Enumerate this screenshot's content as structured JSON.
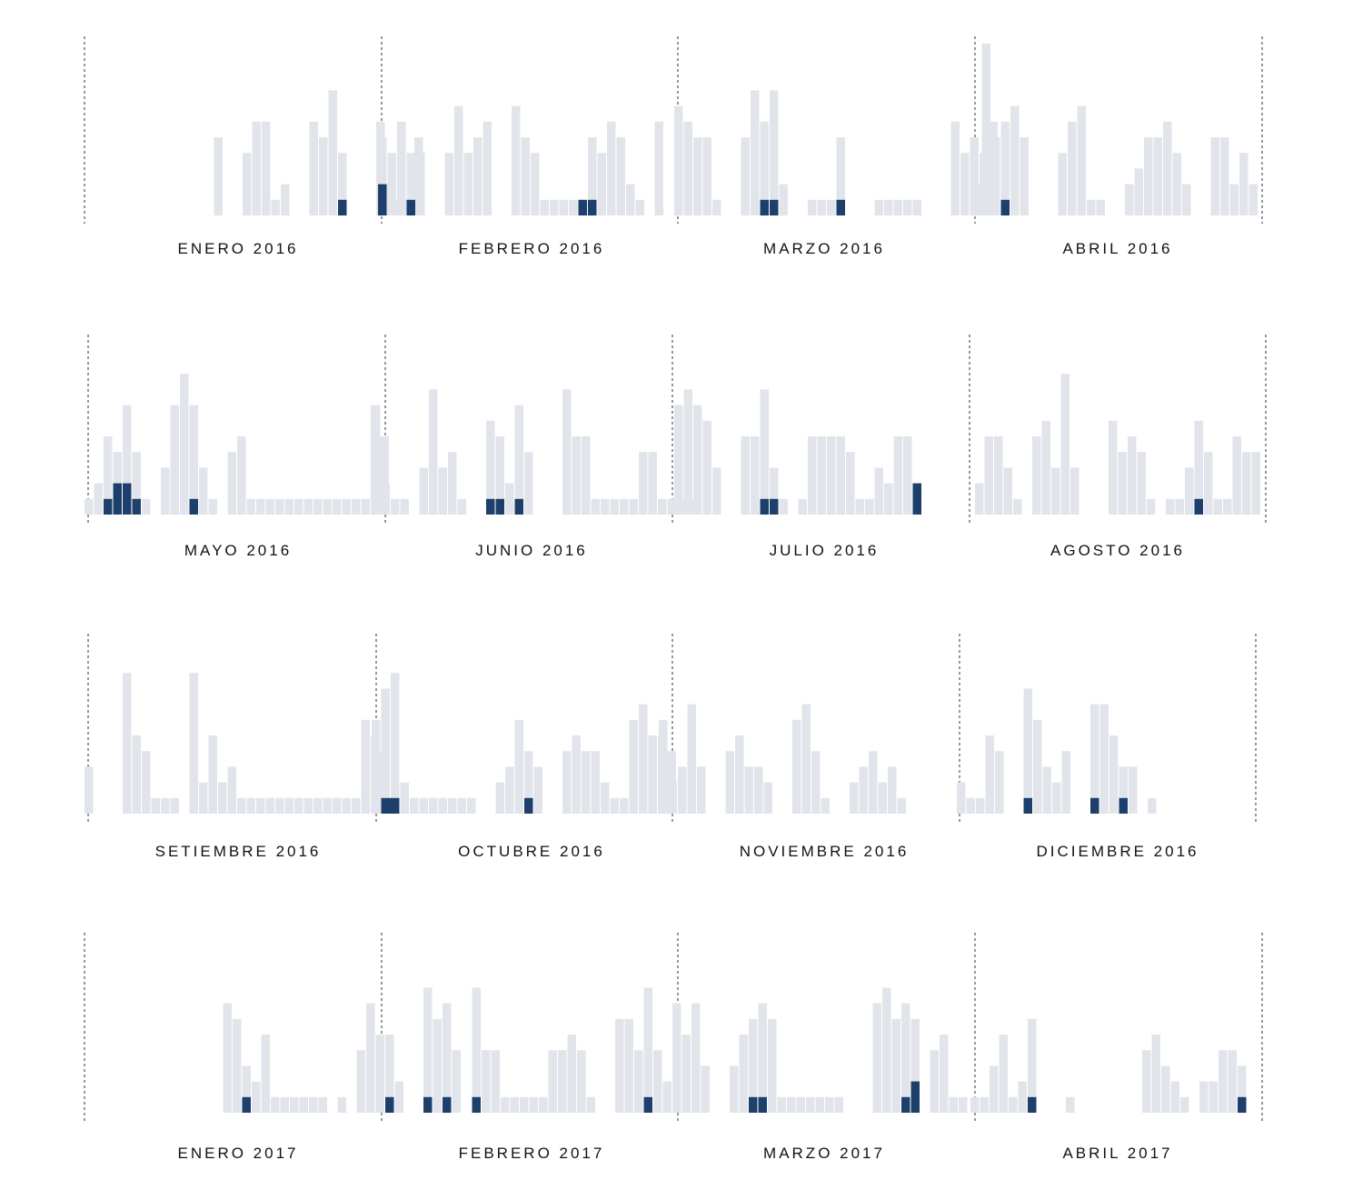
{
  "chart_data": {
    "type": "bar",
    "title": "",
    "xlabel": "",
    "ylabel": "",
    "grid": false,
    "legend": "none",
    "colors": {
      "base": "#e1e4ea",
      "highlight": "#1d3f6b",
      "divider": "#333333",
      "text": "#111111"
    },
    "description_of_values": "Each month panel shows one stacked bar per day: 'total' is the light grey bar height and 'highlight' is the dark blue lower segment (count units).",
    "months": [
      {
        "label": "ENERO 2016",
        "total": [
          0,
          0,
          0,
          0,
          0,
          0,
          0,
          5,
          0,
          0,
          4,
          6,
          6,
          1,
          2,
          0,
          0,
          6,
          5,
          8,
          4,
          0,
          0,
          0,
          6,
          2,
          1,
          1,
          5,
          0,
          0
        ],
        "highlight": [
          0,
          0,
          0,
          0,
          0,
          0,
          0,
          0,
          0,
          0,
          0,
          0,
          0,
          0,
          0,
          0,
          0,
          0,
          0,
          0,
          1,
          0,
          0,
          0,
          0,
          0,
          0,
          0,
          0,
          0,
          0
        ]
      },
      {
        "label": "FEBRERO 2016",
        "total": [
          5,
          4,
          6,
          4,
          4,
          0,
          0,
          4,
          7,
          4,
          5,
          6,
          0,
          0,
          7,
          5,
          4,
          1,
          1,
          1,
          1,
          1,
          5,
          4,
          6,
          5,
          2,
          1,
          0,
          6
        ],
        "highlight": [
          2,
          0,
          0,
          1,
          0,
          0,
          0,
          0,
          0,
          0,
          0,
          0,
          0,
          0,
          0,
          0,
          0,
          0,
          0,
          0,
          0,
          1,
          1,
          0,
          0,
          0,
          0,
          0,
          0,
          0
        ]
      },
      {
        "label": "MARZO 2016",
        "total": [
          7,
          6,
          5,
          5,
          1,
          0,
          0,
          5,
          8,
          6,
          8,
          2,
          0,
          0,
          1,
          1,
          1,
          5,
          0,
          0,
          0,
          1,
          1,
          1,
          1,
          1,
          0,
          0,
          0,
          6,
          4,
          5,
          4,
          6
        ],
        "highlight": [
          0,
          0,
          0,
          0,
          0,
          0,
          0,
          0,
          0,
          1,
          1,
          0,
          0,
          0,
          0,
          0,
          0,
          1,
          0,
          0,
          0,
          0,
          0,
          0,
          0,
          0,
          0,
          0,
          0,
          0,
          0,
          0,
          0,
          0
        ]
      },
      {
        "label": "ABRIL 2016",
        "total": [
          2,
          11,
          5,
          6,
          7,
          5,
          0,
          0,
          0,
          4,
          6,
          7,
          1,
          1,
          0,
          0,
          2,
          3,
          5,
          5,
          6,
          4,
          2,
          0,
          0,
          5,
          5,
          2,
          4,
          2
        ],
        "highlight": [
          0,
          0,
          0,
          1,
          0,
          0,
          0,
          0,
          0,
          0,
          0,
          0,
          0,
          0,
          0,
          0,
          0,
          0,
          0,
          0,
          0,
          0,
          0,
          0,
          0,
          0,
          0,
          0,
          0,
          0
        ]
      },
      {
        "label": "MAYO 2016",
        "total": [
          1,
          2,
          5,
          4,
          7,
          4,
          1,
          0,
          3,
          7,
          9,
          7,
          3,
          1,
          0,
          4,
          5,
          1,
          1,
          1,
          1,
          1,
          1,
          1,
          1,
          1,
          1,
          1,
          1,
          1,
          7,
          5
        ],
        "highlight": [
          0,
          0,
          1,
          2,
          2,
          1,
          0,
          0,
          0,
          0,
          0,
          1,
          0,
          0,
          0,
          0,
          0,
          0,
          0,
          0,
          0,
          0,
          0,
          0,
          0,
          0,
          0,
          0,
          0,
          0,
          0,
          0
        ]
      },
      {
        "label": "JUNIO 2016",
        "total": [
          7,
          2,
          1,
          1,
          0,
          3,
          8,
          3,
          4,
          1,
          0,
          0,
          6,
          5,
          2,
          7,
          4,
          0,
          0,
          0,
          8,
          5,
          5,
          1,
          1,
          1,
          1,
          1,
          4,
          4,
          1,
          1,
          1,
          1
        ],
        "highlight": [
          0,
          0,
          0,
          0,
          0,
          0,
          0,
          0,
          0,
          0,
          0,
          0,
          1,
          1,
          0,
          1,
          0,
          0,
          0,
          0,
          0,
          0,
          0,
          0,
          0,
          0,
          0,
          0,
          0,
          0,
          0,
          0,
          0,
          0
        ]
      },
      {
        "label": "JULIO 2016",
        "total": [
          7,
          8,
          7,
          6,
          3,
          0,
          0,
          5,
          5,
          8,
          3,
          1,
          0,
          1,
          5,
          5,
          5,
          5,
          4,
          1,
          1,
          3,
          2,
          5,
          5,
          2
        ],
        "highlight": [
          0,
          0,
          0,
          0,
          0,
          0,
          0,
          0,
          0,
          1,
          1,
          0,
          0,
          0,
          0,
          0,
          0,
          0,
          0,
          0,
          0,
          0,
          0,
          0,
          0,
          2
        ]
      },
      {
        "label": "AGOSTO 2016",
        "total": [
          2,
          5,
          5,
          3,
          1,
          0,
          5,
          6,
          3,
          9,
          3,
          0,
          0,
          0,
          6,
          4,
          5,
          4,
          1,
          0,
          1,
          1,
          3,
          6,
          4,
          1,
          1,
          5,
          4,
          4
        ],
        "highlight": [
          0,
          0,
          0,
          0,
          0,
          0,
          0,
          0,
          0,
          0,
          0,
          0,
          0,
          0,
          0,
          0,
          0,
          0,
          0,
          0,
          0,
          0,
          0,
          1,
          0,
          0,
          0,
          0,
          0,
          0
        ]
      },
      {
        "label": "SETIEMBRE 2016",
        "total": [
          3,
          0,
          0,
          0,
          9,
          5,
          4,
          1,
          1,
          1,
          0,
          9,
          2,
          5,
          2,
          3,
          1,
          1,
          1,
          1,
          1,
          1,
          1,
          1,
          1,
          1,
          1,
          1,
          1,
          6,
          5,
          4,
          1
        ],
        "highlight": [
          0,
          0,
          0,
          0,
          0,
          0,
          0,
          0,
          0,
          0,
          0,
          0,
          0,
          0,
          0,
          0,
          0,
          0,
          0,
          0,
          0,
          0,
          0,
          0,
          0,
          0,
          0,
          0,
          0,
          0,
          0,
          0,
          1
        ]
      },
      {
        "label": "OCTUBRE 2016",
        "total": [
          6,
          8,
          9,
          2,
          1,
          1,
          1,
          1,
          1,
          1,
          1,
          0,
          0,
          2,
          3,
          6,
          4,
          3,
          0,
          0,
          4,
          5,
          4,
          4,
          2,
          1,
          1,
          6,
          7,
          5,
          5,
          4
        ],
        "highlight": [
          0,
          1,
          1,
          0,
          0,
          0,
          0,
          0,
          0,
          0,
          0,
          0,
          0,
          0,
          0,
          0,
          1,
          0,
          0,
          0,
          0,
          0,
          0,
          0,
          0,
          0,
          0,
          0,
          0,
          0,
          0,
          0
        ]
      },
      {
        "label": "NOVIEMBRE 2016",
        "total": [
          6,
          2,
          3,
          7,
          3,
          0,
          0,
          4,
          5,
          3,
          3,
          2,
          0,
          0,
          6,
          7,
          4,
          1,
          0,
          0,
          2,
          3,
          4,
          2,
          3,
          1
        ],
        "highlight": [
          0,
          0,
          0,
          0,
          0,
          0,
          0,
          0,
          0,
          0,
          0,
          0,
          0,
          0,
          0,
          0,
          0,
          0,
          0,
          0,
          0,
          0,
          0,
          0,
          0,
          0
        ]
      },
      {
        "label": "DICIEMBRE 2016",
        "total": [
          2,
          1,
          1,
          5,
          4,
          0,
          0,
          8,
          6,
          3,
          2,
          4,
          0,
          0,
          7,
          7,
          5,
          3,
          3,
          0,
          1
        ],
        "highlight": [
          0,
          0,
          0,
          0,
          0,
          0,
          0,
          1,
          0,
          0,
          0,
          0,
          0,
          0,
          1,
          0,
          0,
          1,
          0,
          0,
          0
        ]
      },
      {
        "label": "ENERO 2017",
        "total": [
          0,
          0,
          0,
          0,
          0,
          0,
          0,
          7,
          6,
          3,
          2,
          5,
          1,
          1,
          1,
          1,
          1,
          1,
          0,
          1,
          0,
          4,
          7,
          5,
          5,
          2,
          0,
          0,
          8,
          6,
          7,
          4
        ],
        "highlight": [
          0,
          0,
          0,
          0,
          0,
          0,
          0,
          0,
          0,
          1,
          0,
          0,
          0,
          0,
          0,
          0,
          0,
          0,
          0,
          0,
          0,
          0,
          0,
          0,
          1,
          0,
          0,
          0,
          1,
          0,
          1,
          0
        ]
      },
      {
        "label": "FEBRERO 2017",
        "total": [
          0,
          0,
          0,
          0,
          0,
          8,
          4,
          4,
          1,
          1,
          1,
          1,
          1,
          4,
          4,
          5,
          4,
          1,
          0,
          0,
          6,
          6,
          4,
          8,
          4,
          2,
          0,
          5,
          7
        ],
        "highlight": [
          0,
          0,
          0,
          0,
          0,
          1,
          0,
          0,
          0,
          0,
          0,
          0,
          0,
          0,
          0,
          0,
          0,
          0,
          0,
          0,
          0,
          0,
          0,
          1,
          0,
          0,
          0,
          0,
          2
        ]
      },
      {
        "label": "MARZO 2017",
        "total": [
          7,
          0,
          4,
          3,
          0,
          0,
          3,
          5,
          6,
          7,
          6,
          1,
          1,
          1,
          1,
          1,
          1,
          1,
          0,
          0,
          0,
          7,
          8,
          6,
          7,
          6,
          0,
          4,
          5,
          1,
          1
        ],
        "highlight": [
          0,
          0,
          0,
          0,
          0,
          0,
          0,
          0,
          1,
          1,
          0,
          0,
          0,
          0,
          0,
          0,
          0,
          0,
          0,
          0,
          0,
          0,
          0,
          0,
          1,
          2,
          0,
          0,
          0,
          0,
          0
        ]
      },
      {
        "label": "ABRIL 2017",
        "total": [
          1,
          1,
          3,
          5,
          1,
          2,
          6,
          0,
          0,
          0,
          1,
          0,
          0,
          0,
          0,
          0,
          0,
          0,
          4,
          5,
          3,
          2,
          1,
          0,
          2,
          2,
          4,
          4,
          3
        ],
        "highlight": [
          0,
          0,
          0,
          0,
          0,
          0,
          1,
          0,
          0,
          0,
          0,
          0,
          0,
          0,
          0,
          0,
          0,
          0,
          0,
          0,
          0,
          0,
          0,
          0,
          0,
          0,
          0,
          0,
          1
        ]
      }
    ]
  }
}
